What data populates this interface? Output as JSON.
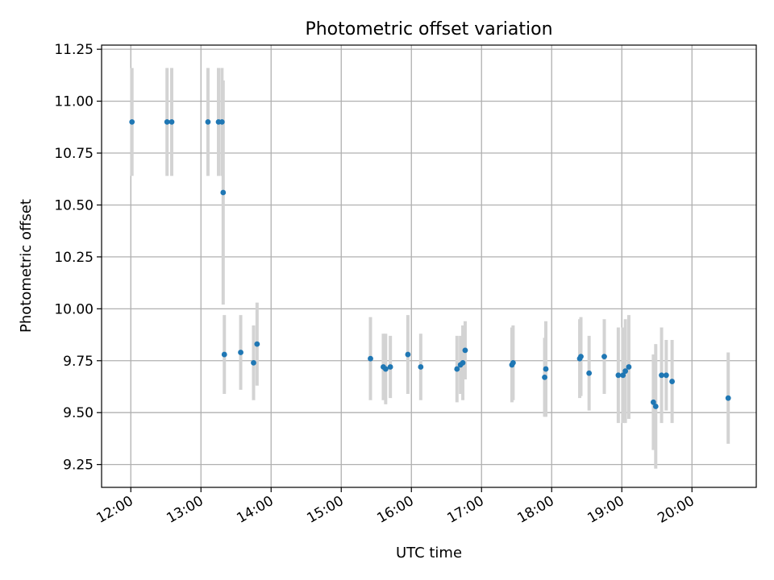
{
  "chart_data": {
    "type": "scatter",
    "title": "Photometric offset variation",
    "xlabel": "UTC time",
    "ylabel": "Photometric offset",
    "xlim": [
      "11:35",
      "20:55"
    ],
    "ylim": [
      9.14,
      11.27
    ],
    "grid": true,
    "x_ticks": [
      "12:00",
      "13:00",
      "14:00",
      "15:00",
      "16:00",
      "17:00",
      "18:00",
      "19:00",
      "20:00"
    ],
    "y_ticks": [
      "9.25",
      "9.50",
      "9.75",
      "10.00",
      "10.25",
      "10.50",
      "10.75",
      "11.00",
      "11.25"
    ],
    "colors": {
      "marker": "#1f77b4",
      "errorbar": "#d3d3d3",
      "grid": "#b0b0b0"
    },
    "points": [
      {
        "x": "12:01",
        "y": 10.9,
        "err": 0.26
      },
      {
        "x": "12:31",
        "y": 10.9,
        "err": 0.26
      },
      {
        "x": "12:35",
        "y": 10.9,
        "err": 0.26
      },
      {
        "x": "13:06",
        "y": 10.9,
        "err": 0.26
      },
      {
        "x": "13:15",
        "y": 10.9,
        "err": 0.26
      },
      {
        "x": "13:18",
        "y": 10.9,
        "err": 0.26
      },
      {
        "x": "13:19",
        "y": 10.56,
        "err": 0.54
      },
      {
        "x": "13:20",
        "y": 9.78,
        "err": 0.19
      },
      {
        "x": "13:34",
        "y": 9.79,
        "err": 0.18
      },
      {
        "x": "13:45",
        "y": 9.74,
        "err": 0.18
      },
      {
        "x": "13:48",
        "y": 9.83,
        "err": 0.2
      },
      {
        "x": "15:25",
        "y": 9.76,
        "err": 0.2
      },
      {
        "x": "15:36",
        "y": 9.72,
        "err": 0.16
      },
      {
        "x": "15:38",
        "y": 9.71,
        "err": 0.17
      },
      {
        "x": "15:42",
        "y": 9.72,
        "err": 0.15
      },
      {
        "x": "15:57",
        "y": 9.78,
        "err": 0.19
      },
      {
        "x": "16:08",
        "y": 9.72,
        "err": 0.16
      },
      {
        "x": "16:39",
        "y": 9.71,
        "err": 0.16
      },
      {
        "x": "16:42",
        "y": 9.73,
        "err": 0.14
      },
      {
        "x": "16:44",
        "y": 9.74,
        "err": 0.18
      },
      {
        "x": "16:46",
        "y": 9.8,
        "err": 0.14
      },
      {
        "x": "17:26",
        "y": 9.73,
        "err": 0.18
      },
      {
        "x": "17:27",
        "y": 9.74,
        "err": 0.18
      },
      {
        "x": "17:54",
        "y": 9.67,
        "err": 0.19
      },
      {
        "x": "17:55",
        "y": 9.71,
        "err": 0.23
      },
      {
        "x": "18:24",
        "y": 9.76,
        "err": 0.19
      },
      {
        "x": "18:25",
        "y": 9.77,
        "err": 0.19
      },
      {
        "x": "18:32",
        "y": 9.69,
        "err": 0.18
      },
      {
        "x": "18:45",
        "y": 9.77,
        "err": 0.18
      },
      {
        "x": "18:57",
        "y": 9.68,
        "err": 0.23
      },
      {
        "x": "19:01",
        "y": 9.68,
        "err": 0.23
      },
      {
        "x": "19:03",
        "y": 9.7,
        "err": 0.25
      },
      {
        "x": "19:06",
        "y": 9.72,
        "err": 0.25
      },
      {
        "x": "19:27",
        "y": 9.55,
        "err": 0.23
      },
      {
        "x": "19:29",
        "y": 9.53,
        "err": 0.3
      },
      {
        "x": "19:34",
        "y": 9.68,
        "err": 0.23
      },
      {
        "x": "19:38",
        "y": 9.68,
        "err": 0.17
      },
      {
        "x": "19:43",
        "y": 9.65,
        "err": 0.2
      },
      {
        "x": "20:31",
        "y": 9.57,
        "err": 0.22
      }
    ]
  }
}
